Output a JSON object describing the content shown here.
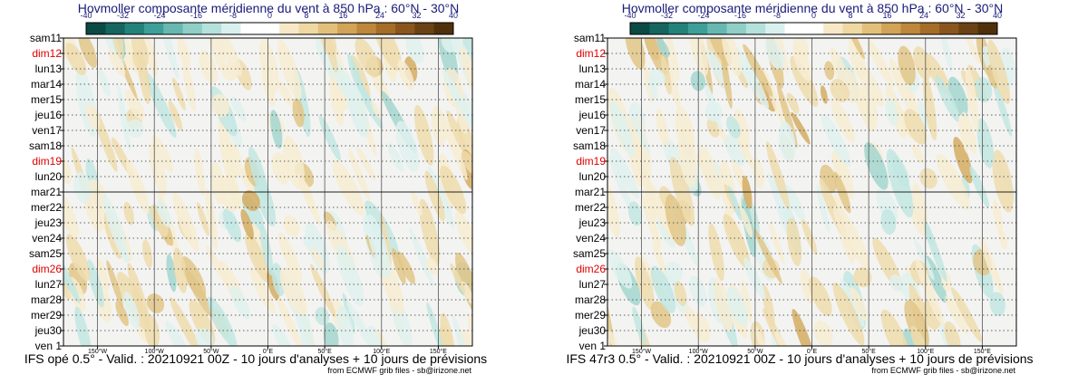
{
  "colors": {
    "scale": [
      "#0a4a44",
      "#14665f",
      "#23837b",
      "#3d9f97",
      "#66b8b0",
      "#8fcfc8",
      "#b5e1dc",
      "#d9f0ee",
      "#ffffff",
      "#ffffff",
      "#f7e9c7",
      "#efd9a3",
      "#e3c07a",
      "#d2a457",
      "#bd883b",
      "#a66d29",
      "#8a561d",
      "#6b4213",
      "#4f300b"
    ],
    "title": "#1a1a7a",
    "sunday": "#e00000",
    "background": "#f3f3f2"
  },
  "panels": [
    {
      "title": "Hovmoller composante méridienne du vent à 850 hPa : 60°N - 30°N",
      "footer": "IFS opé 0.5° - Valid. : 20210921 00Z - 10 jours d'analyses + 10 jours de prévisions",
      "credit": "from ECMWF grib files - sb@irizone.net"
    },
    {
      "title": "Hovmoller composante méridienne du vent à 850 hPa : 60°N - 30°N",
      "footer": "IFS 47r3 0.5° - Valid. : 20210921 00Z - 10 jours d'analyses + 10 jours de prévisions",
      "credit": "from ECMWF grib files - sb@irizone.net"
    }
  ],
  "chart_data": [
    {
      "type": "heatmap",
      "title": "Hovmoller composante méridienne du vent à 850 hPa : 60°N - 30°N",
      "model": "IFS opé 0.5°",
      "validity": "20210921 00Z",
      "period": "10 jours d'analyses + 10 jours de prévisions",
      "colorbar_ticks": [
        -40,
        -32,
        -24,
        -16,
        -8,
        0,
        8,
        16,
        24,
        32,
        40
      ],
      "colorbar_range": [
        -40,
        40
      ],
      "y_labels": [
        "sam11",
        "dim12",
        "lun13",
        "mar14",
        "mer15",
        "jeu16",
        "ven17",
        "sam18",
        "dim19",
        "lun20",
        "mar21",
        "mer22",
        "jeu23",
        "ven24",
        "sam25",
        "dim26",
        "lun27",
        "mar28",
        "mer29",
        "jeu30",
        "ven 1"
      ],
      "sunday_labels": [
        "dim12",
        "dim19",
        "dim26"
      ],
      "x_tick_labels": [
        "150°W",
        "100°W",
        "50°W",
        "0°E",
        "50°E",
        "100°E",
        "150°E"
      ],
      "x_ticks_deg": [
        -150,
        -100,
        -50,
        0,
        50,
        100,
        150
      ],
      "xlim": [
        -180,
        180
      ],
      "analysis_forecast_boundary": "mar21",
      "grid": true
    },
    {
      "type": "heatmap",
      "title": "Hovmoller composante méridienne du vent à 850 hPa : 60°N - 30°N",
      "model": "IFS 47r3 0.5°",
      "validity": "20210921 00Z",
      "period": "10 jours d'analyses + 10 jours de prévisions",
      "colorbar_ticks": [
        -40,
        -32,
        -24,
        -16,
        -8,
        0,
        8,
        16,
        24,
        32,
        40
      ],
      "colorbar_range": [
        -40,
        40
      ],
      "y_labels": [
        "sam11",
        "dim12",
        "lun13",
        "mar14",
        "mer15",
        "jeu16",
        "ven17",
        "sam18",
        "dim19",
        "lun20",
        "mar21",
        "mer22",
        "jeu23",
        "ven24",
        "sam25",
        "dim26",
        "lun27",
        "mar28",
        "mer29",
        "jeu30",
        "ven 1"
      ],
      "sunday_labels": [
        "dim12",
        "dim19",
        "dim26"
      ],
      "x_tick_labels": [
        "150°W",
        "100°W",
        "50°W",
        "0°E",
        "50°E",
        "100°E",
        "150°E"
      ],
      "x_ticks_deg": [
        -150,
        -100,
        -50,
        0,
        50,
        100,
        150
      ],
      "xlim": [
        -180,
        180
      ],
      "analysis_forecast_boundary": "mar21",
      "grid": true
    }
  ]
}
